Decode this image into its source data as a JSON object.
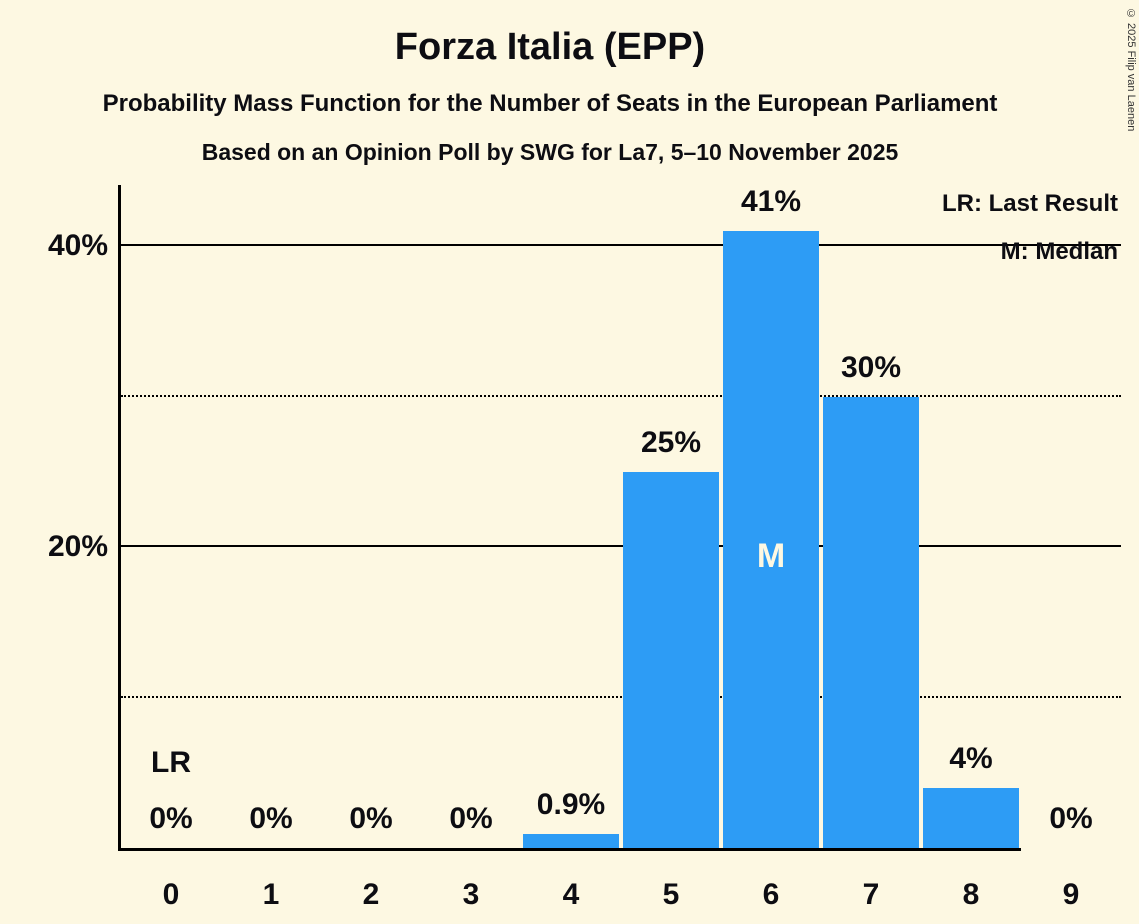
{
  "title": "Forza Italia (EPP)",
  "subtitle1": "Probability Mass Function for the Number of Seats in the European Parliament",
  "subtitle2": "Based on an Opinion Poll by SWG for La7, 5–10 November 2025",
  "copyright": "© 2025 Filip van Laenen",
  "legend": {
    "lr": "LR: Last Result",
    "m": "M: Median"
  },
  "colors": {
    "background": "#fdf8e2",
    "bar": "#2d9cf5",
    "text": "#0d0d12",
    "median_text": "#fdf8e2"
  },
  "chart_data": {
    "type": "bar",
    "title": "Forza Italia (EPP)",
    "xlabel": "",
    "ylabel": "",
    "categories": [
      "0",
      "1",
      "2",
      "3",
      "4",
      "5",
      "6",
      "7",
      "8",
      "9"
    ],
    "values": [
      0,
      0,
      0,
      0,
      0.9,
      25,
      41,
      30,
      4,
      0
    ],
    "labels": [
      "0%",
      "0%",
      "0%",
      "0%",
      "0.9%",
      "25%",
      "41%",
      "30%",
      "4%",
      "0%"
    ],
    "ylim": [
      0,
      44
    ],
    "ytick_labels": [
      {
        "value": 20,
        "label": "20%"
      },
      {
        "value": 40,
        "label": "40%"
      }
    ],
    "solid_gridlines": [
      20,
      40
    ],
    "dotted_gridlines": [
      10,
      30
    ],
    "grid": true,
    "legend_position": "top-right",
    "annotations": {
      "lr_seat": 0,
      "lr_label": "LR",
      "median_seat": 6,
      "median_label": "M"
    }
  }
}
